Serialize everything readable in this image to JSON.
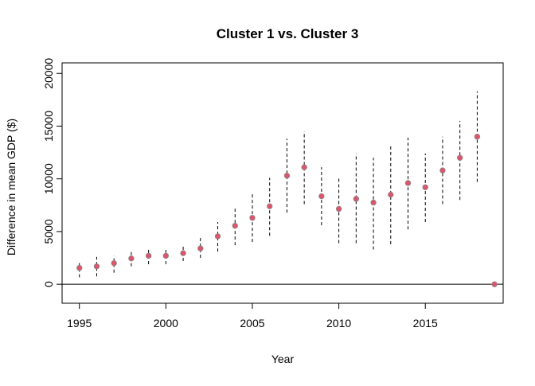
{
  "chart_data": {
    "type": "scatter",
    "title": "Cluster 1 vs. Cluster 3",
    "xlabel": "Year",
    "ylabel": "Difference in mean GDP ($)",
    "xlim": [
      1994,
      2019.5
    ],
    "ylim": [
      -1800,
      21000
    ],
    "x_ticks": [
      1995,
      2000,
      2005,
      2010,
      2015
    ],
    "y_ticks": [
      0,
      5000,
      10000,
      15000,
      20000
    ],
    "reference_line_y": 0,
    "grid": false,
    "legend": "none",
    "point_color": "#DF536B",
    "errorbar_color": "#000000",
    "errorbar_style": "dashed",
    "series": [
      {
        "x": [
          1995,
          1996,
          1997,
          1998,
          1999,
          2000,
          2001,
          2002,
          2003,
          2004,
          2005,
          2006,
          2007,
          2008,
          2009,
          2010,
          2011,
          2012,
          2013,
          2014,
          2015,
          2016,
          2017,
          2018,
          2019
        ],
        "y": [
          1550,
          1700,
          2000,
          2450,
          2700,
          2700,
          2950,
          3400,
          4550,
          5550,
          6300,
          7400,
          10300,
          11100,
          8350,
          7150,
          8100,
          7750,
          8500,
          9600,
          9200,
          10800,
          12000,
          14000,
          0
        ],
        "lower": [
          650,
          750,
          1100,
          1700,
          1900,
          1900,
          2200,
          2500,
          3100,
          3700,
          4000,
          4600,
          6800,
          7600,
          5600,
          3900,
          3900,
          3300,
          3800,
          5200,
          5900,
          7600,
          8000,
          9700,
          null
        ],
        "upper": [
          2200,
          2600,
          2700,
          3200,
          3400,
          3300,
          3600,
          4400,
          5900,
          7400,
          8600,
          10100,
          13800,
          14500,
          11100,
          10200,
          12400,
          12000,
          13100,
          13900,
          12400,
          14000,
          15500,
          18300,
          null
        ]
      }
    ]
  }
}
